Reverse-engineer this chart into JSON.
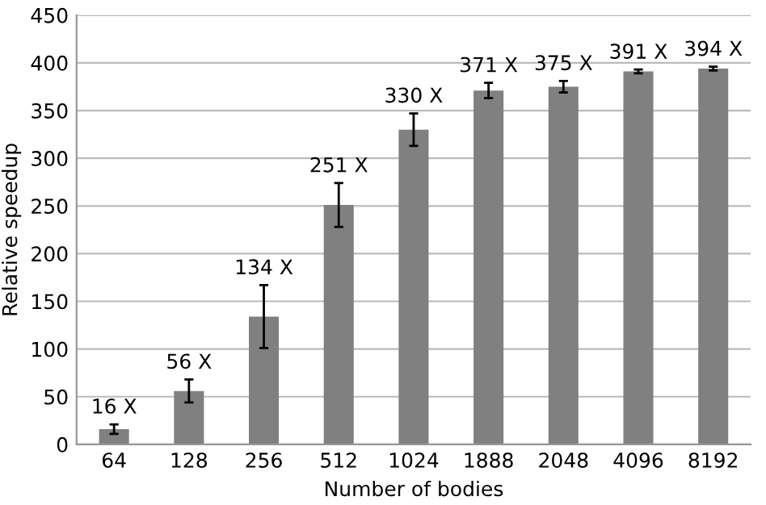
{
  "chart_data": {
    "type": "bar",
    "xlabel": "Number of bodies",
    "ylabel": "Relative speedup",
    "categories": [
      "64",
      "128",
      "256",
      "512",
      "1024",
      "1888",
      "2048",
      "4096",
      "8192"
    ],
    "values": [
      16,
      56,
      134,
      251,
      330,
      371,
      375,
      391,
      394
    ],
    "errors": [
      5,
      12,
      33,
      23,
      17,
      8,
      6,
      2,
      2
    ],
    "value_labels": [
      "16 X",
      "56 X",
      "134 X",
      "251 X",
      "330 X",
      "371 X",
      "375 X",
      "391 X",
      "394 X"
    ],
    "color": "#808080",
    "ylim": [
      0,
      450
    ],
    "yticks": [
      0,
      50,
      100,
      150,
      200,
      250,
      300,
      350,
      400,
      450
    ],
    "grid": "y",
    "legend": false
  }
}
